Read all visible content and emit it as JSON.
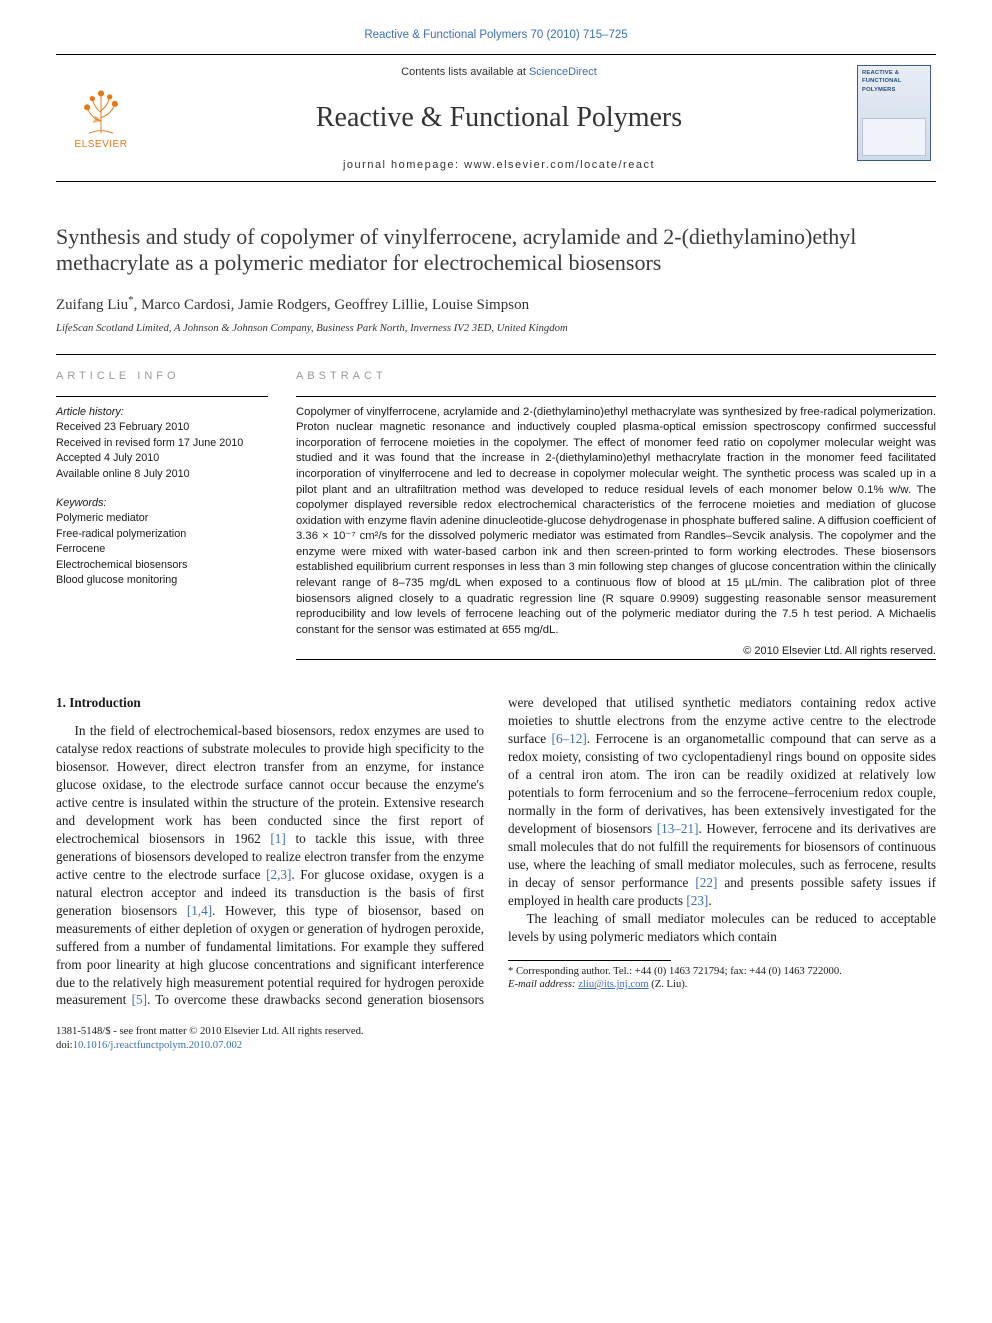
{
  "top_citation": "Reactive & Functional Polymers 70 (2010) 715–725",
  "header": {
    "contents_prefix": "Contents lists available at ",
    "contents_link": "ScienceDirect",
    "journal_title": "Reactive & Functional Polymers",
    "homepage_prefix": "journal homepage: ",
    "homepage_url": "www.elsevier.com/locate/react",
    "elsevier_word": "ELSEVIER",
    "cover_lines": [
      "REACTIVE &",
      "FUNCTIONAL",
      "POLYMERS"
    ]
  },
  "article": {
    "title": "Synthesis and study of copolymer of vinylferrocene, acrylamide and 2-(diethylamino)ethyl methacrylate as a polymeric mediator for electrochemical biosensors",
    "authors_html": "Zuifang Liu<span class='corr'>*</span>, Marco Cardosi, Jamie Rodgers, Geoffrey Lillie, Louise Simpson",
    "affiliation": "LifeScan Scotland Limited, A Johnson & Johnson Company, Business Park North, Inverness IV2 3ED, United Kingdom"
  },
  "info": {
    "heading": "article info",
    "history_label": "Article history:",
    "history": [
      "Received 23 February 2010",
      "Received in revised form 17 June 2010",
      "Accepted 4 July 2010",
      "Available online 8 July 2010"
    ],
    "kw_label": "Keywords:",
    "keywords": [
      "Polymeric mediator",
      "Free-radical polymerization",
      "Ferrocene",
      "Electrochemical biosensors",
      "Blood glucose monitoring"
    ]
  },
  "abstract": {
    "heading": "abstract",
    "text": "Copolymer of vinylferrocene, acrylamide and 2-(diethylamino)ethyl methacrylate was synthesized by free-radical polymerization. Proton nuclear magnetic resonance and inductively coupled plasma-optical emission spectroscopy confirmed successful incorporation of ferrocene moieties in the copolymer. The effect of monomer feed ratio on copolymer molecular weight was studied and it was found that the increase in 2-(diethylamino)ethyl methacrylate fraction in the monomer feed facilitated incorporation of vinylferrocene and led to decrease in copolymer molecular weight. The synthetic process was scaled up in a pilot plant and an ultrafiltration method was developed to reduce residual levels of each monomer below 0.1% w/w. The copolymer displayed reversible redox electrochemical characteristics of the ferrocene moieties and mediation of glucose oxidation with enzyme flavin adenine dinucleotide-glucose dehydrogenase in phosphate buffered saline. A diffusion coefficient of 3.36 × 10⁻⁷ cm²/s for the dissolved polymeric mediator was estimated from Randles–Sevcik analysis. The copolymer and the enzyme were mixed with water-based carbon ink and then screen-printed to form working electrodes. These biosensors established equilibrium current responses in less than 3 min following step changes of glucose concentration within the clinically relevant range of 8–735 mg/dL when exposed to a continuous flow of blood at 15 µL/min. The calibration plot of three biosensors aligned closely to a quadratic regression line (R square 0.9909) suggesting reasonable sensor measurement reproducibility and low levels of ferrocene leaching out of the polymeric mediator during the 7.5 h test period. A Michaelis constant for the sensor was estimated at 655 mg/dL.",
    "copyright": "© 2010 Elsevier Ltd. All rights reserved."
  },
  "body": {
    "section_heading": "1. Introduction",
    "p1_a": "In the field of electrochemical-based biosensors, redox enzymes are used to catalyse redox reactions of substrate molecules to provide high specificity to the biosensor. However, direct electron transfer from an enzyme, for instance glucose oxidase, to the electrode surface cannot occur because the enzyme's active centre is insulated within the structure of the protein. Extensive research and development work has been conducted since the first report of electrochemical biosensors in 1962 ",
    "ref1": "[1]",
    "p1_b": " to tackle this issue, with three generations of biosensors developed to realize electron transfer from the enzyme active centre to the electrode surface ",
    "ref23": "[2,3]",
    "p1_c": ". For glucose oxidase, oxygen is a natural electron acceptor and indeed its transduction is the basis of first generation biosensors ",
    "ref14": "[1,4]",
    "p1_d": ". However, this type of biosensor, based on measurements of either depletion of oxygen or generation of hydrogen peroxide, suffered from a number of fundamental limitations. For example they suf",
    "p2_a": "fered from poor linearity at high glucose concentrations and significant interference due to the relatively high measurement potential required for hydrogen peroxide measurement ",
    "ref5": "[5]",
    "p2_b": ". To overcome these drawbacks second generation biosensors were developed that utilised synthetic mediators containing redox active moieties to shuttle electrons from the enzyme active centre to the electrode surface ",
    "ref612": "[6–12]",
    "p2_c": ". Ferrocene is an organometallic compound that can serve as a redox moiety, consisting of two cyclopentadienyl rings bound on opposite sides of a central iron atom. The iron can be readily oxidized at relatively low potentials to form ferrocenium and so the ferrocene–ferrocenium redox couple, normally in the form of derivatives, has been extensively investigated for the development of biosensors ",
    "ref1321": "[13–21]",
    "p2_d": ". However, ferrocene and its derivatives are small molecules that do not fulfill the requirements for biosensors of continuous use, where the leaching of small mediator molecules, such as ferrocene, results in decay of sensor performance ",
    "ref22": "[22]",
    "p2_e": " and presents possible safety issues if employed in health care products ",
    "ref23b": "[23]",
    "p2_f": ".",
    "p3": "The leaching of small mediator molecules can be reduced to acceptable levels by using polymeric mediators which contain"
  },
  "footnote": {
    "line1_a": "* Corresponding author. Tel.: +44 (0) 1463 721794; fax: +44 (0) 1463 722000.",
    "line2_label": "E-mail address: ",
    "line2_email": "zliu@its.jnj.com",
    "line2_tail": " (Z. Liu)."
  },
  "footer": {
    "line1": "1381-5148/$ - see front matter © 2010 Elsevier Ltd. All rights reserved.",
    "line2_a": "doi:",
    "line2_b": "10.1016/j.reactfunctpolym.2010.07.002"
  },
  "colors": {
    "link": "#3b6fb6",
    "elsevier_orange": "#e67817",
    "text": "#1a1a1a"
  }
}
